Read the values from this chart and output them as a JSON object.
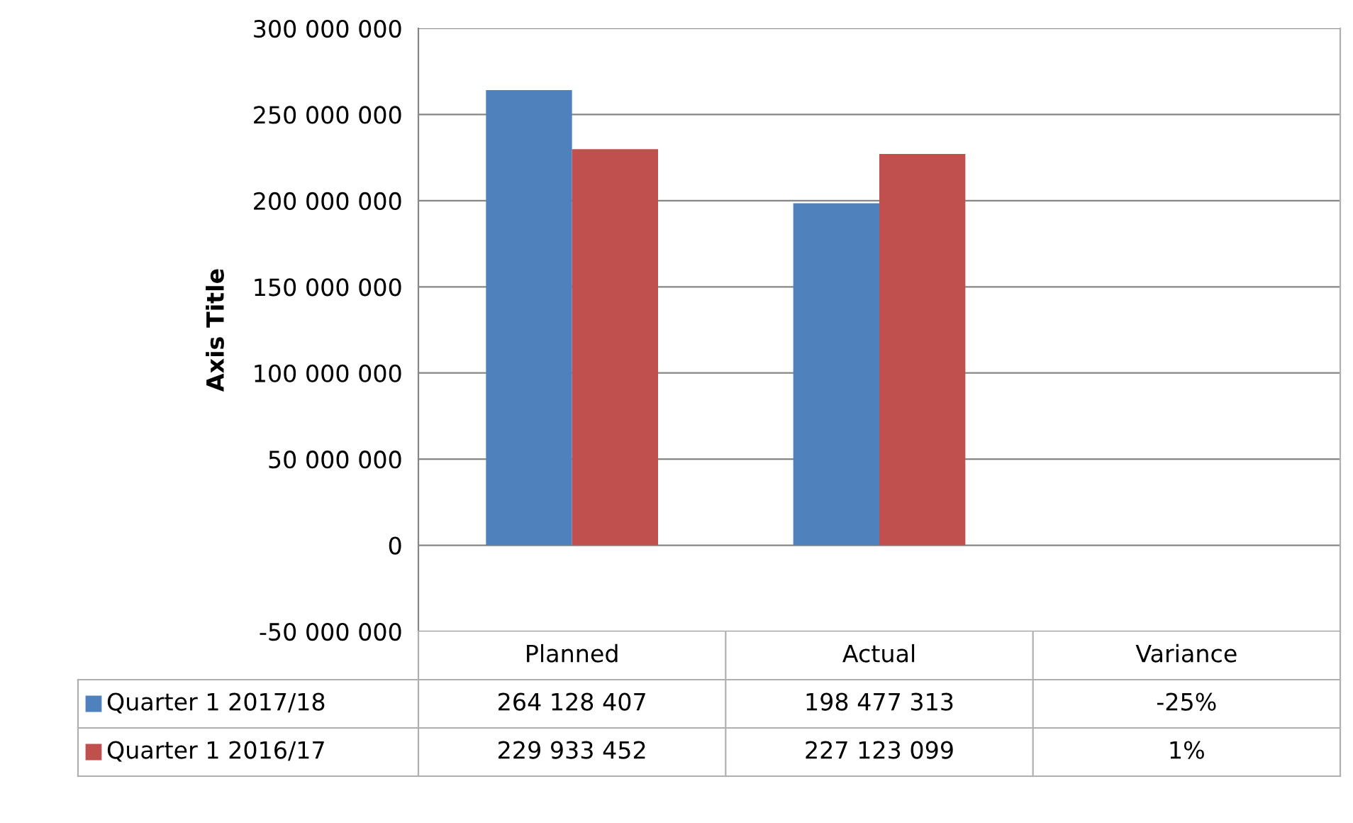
{
  "chart_data": {
    "type": "bar",
    "ylabel": "Axis Title",
    "categories": [
      "Planned",
      "Actual",
      "Variance"
    ],
    "series": [
      {
        "name": "Quarter 1 2017/18",
        "color": "#4f81bd",
        "values": [
          264128407,
          198477313,
          -0.25
        ],
        "value_labels": [
          "264 128 407",
          "198 477 313",
          "-25%"
        ]
      },
      {
        "name": "Quarter 1 2016/17",
        "color": "#c0504d",
        "values": [
          229933452,
          227123099,
          0.01
        ],
        "value_labels": [
          "229 933 452",
          "227 123 099",
          "1%"
        ]
      }
    ],
    "ylim": [
      -50000000,
      300000000
    ],
    "yticks": [
      {
        "value": -50000000,
        "label": "-50 000 000"
      },
      {
        "value": 0,
        "label": "0"
      },
      {
        "value": 50000000,
        "label": "50 000 000"
      },
      {
        "value": 100000000,
        "label": "100 000 000"
      },
      {
        "value": 150000000,
        "label": "150 000 000"
      },
      {
        "value": 200000000,
        "label": "200 000 000"
      },
      {
        "value": 250000000,
        "label": "250 000 000"
      },
      {
        "value": 300000000,
        "label": "300 000 000"
      }
    ],
    "grid": "y",
    "legend": "bottom left"
  }
}
